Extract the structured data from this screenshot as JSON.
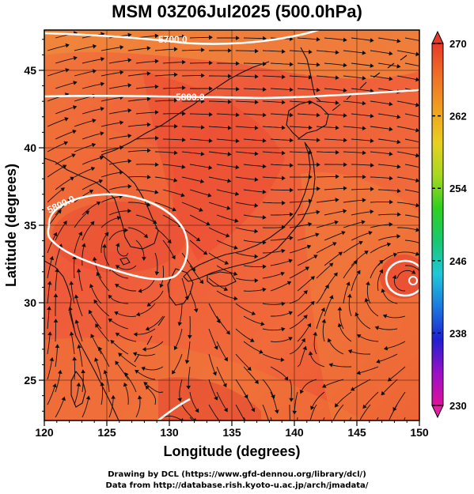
{
  "title": "MSM 03Z06Jul2025 (500.0hPa)",
  "x_axis": {
    "label": "Longitude (degrees)",
    "ticks": [
      "120",
      "125",
      "130",
      "135",
      "140",
      "145",
      "150"
    ],
    "range": [
      120,
      150
    ]
  },
  "y_axis": {
    "label": "Latitude  (degrees)",
    "ticks": [
      "25",
      "30",
      "35",
      "40",
      "45"
    ],
    "range": [
      22.4,
      47.6
    ]
  },
  "colorbar": {
    "ticks": [
      "270",
      "262",
      "254",
      "246",
      "238",
      "230"
    ],
    "range": [
      230,
      270
    ],
    "colors": [
      "#e0109a",
      "#9a10c8",
      "#2020d0",
      "#1a7ae0",
      "#20c8d8",
      "#18c870",
      "#30d020",
      "#a8d820",
      "#e8d020",
      "#f0a020",
      "#f07028",
      "#e83a2a"
    ]
  },
  "contours": [
    {
      "label": "5700.0",
      "value": 5700.0
    },
    {
      "label": "5800.0",
      "value": 5800.0
    },
    {
      "label": "5800.0",
      "value": 5800.0
    }
  ],
  "credits": [
    "Drawing by DCL (https://www.gfd-dennou.org/library/dcl/)",
    "Data from http://database.rish.kyoto-u.ac.jp/arch/jmadata/"
  ],
  "colors": {
    "field_main": "#f05a3c",
    "field_warm": "#f0783a",
    "field_hot": "#e8462e",
    "contour": "#ffffff",
    "coast": "#111111",
    "wind": "#111111"
  }
}
